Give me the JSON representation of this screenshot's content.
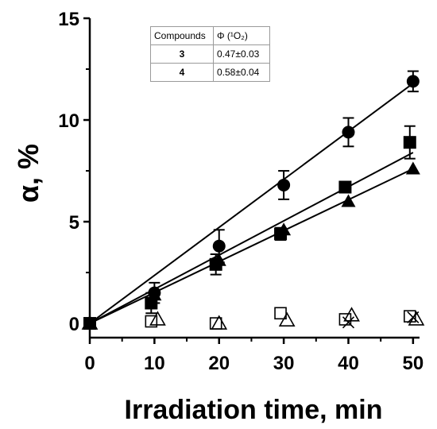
{
  "chart_data": {
    "type": "scatter",
    "title": "",
    "xlabel": "Irradiation time, min",
    "ylabel": "α, %",
    "xlim": [
      0,
      51
    ],
    "ylim": [
      -0.7,
      15
    ],
    "xticks": [
      0,
      10,
      20,
      30,
      40,
      50
    ],
    "yticks": [
      0,
      5,
      10,
      15
    ],
    "grid": false,
    "series": [
      {
        "marker": "filled-circle",
        "x": [
          0,
          10,
          20,
          30,
          40,
          50
        ],
        "y": [
          0,
          1.5,
          3.8,
          6.8,
          9.4,
          11.9
        ],
        "err": [
          0,
          0.5,
          0.8,
          0.7,
          0.7,
          0.5
        ],
        "fit_line": [
          [
            0,
            0
          ],
          [
            50,
            11.8
          ]
        ]
      },
      {
        "marker": "filled-square",
        "x": [
          0,
          9.5,
          19.5,
          29.5,
          39.5,
          49.5
        ],
        "y": [
          0,
          1.0,
          2.9,
          4.4,
          6.7,
          8.9
        ],
        "err": [
          0,
          0.5,
          0.5,
          0.3,
          0,
          0.8
        ],
        "fit_line": [
          [
            0,
            0
          ],
          [
            50,
            8.4
          ]
        ]
      },
      {
        "marker": "filled-triangle",
        "x": [
          0,
          10,
          20,
          30,
          40,
          50
        ],
        "y": [
          0,
          1.4,
          3.1,
          4.6,
          6.0,
          7.6
        ],
        "err": [
          0,
          0,
          0,
          0,
          0,
          0
        ],
        "fit_line": [
          [
            0,
            0
          ],
          [
            50,
            7.6
          ]
        ]
      },
      {
        "marker": "open-square",
        "x": [
          0,
          9.5,
          19.5,
          29.5,
          39.5,
          49.5
        ],
        "y": [
          0,
          0.1,
          0.0,
          0.5,
          0.2,
          0.35
        ],
        "err": [
          0,
          0,
          0,
          0,
          0,
          0
        ]
      },
      {
        "marker": "open-triangle",
        "x": [
          0,
          10.5,
          20,
          30.5,
          40.5,
          50.5
        ],
        "y": [
          0,
          0.2,
          0.0,
          0.15,
          0.4,
          0.2
        ],
        "err": [
          0,
          0,
          0,
          0,
          0,
          0
        ]
      },
      {
        "marker": "cross",
        "x": [
          40,
          50
        ],
        "y": [
          0.05,
          0.3
        ],
        "err": [
          0,
          0
        ]
      }
    ],
    "inset_table": {
      "headers": [
        "Compounds",
        "Φ (¹O₂)"
      ],
      "rows": [
        {
          "compound": "3",
          "phi": "0.47±0.03"
        },
        {
          "compound": "4",
          "phi": "0.58±0.04"
        }
      ]
    }
  }
}
